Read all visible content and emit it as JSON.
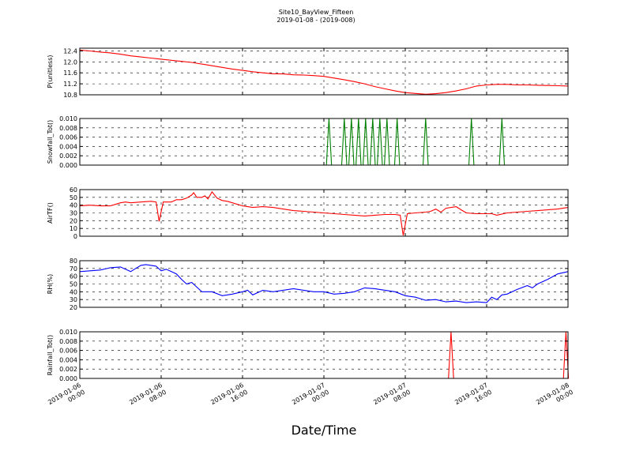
{
  "title": "Site10_BayView_Fifteen",
  "subtitle": "2019-01-08 - (2019-008)",
  "xlabel": "Date/Time",
  "chart_data": [
    {
      "type": "line",
      "ylabel": "P(unitless)",
      "ylim": [
        10.8,
        12.5
      ],
      "yticks": [
        "12.4",
        "12.0",
        "11.6",
        "11.2",
        "10.8"
      ],
      "ytick_values": [
        12.4,
        12.0,
        11.6,
        11.2,
        10.8
      ],
      "color": "#ff0000",
      "grid": true,
      "x": [
        0,
        1,
        2,
        3,
        4,
        5,
        6,
        7,
        8,
        9,
        10,
        11,
        12,
        13,
        14,
        15,
        16,
        17,
        18,
        19,
        20,
        21,
        22,
        23,
        24,
        25,
        26,
        27,
        28,
        29,
        30,
        31,
        32,
        33,
        34,
        35,
        36,
        37,
        38,
        39,
        40,
        41,
        42,
        43,
        44,
        45,
        46,
        47,
        48
      ],
      "values": [
        12.43,
        12.4,
        12.36,
        12.33,
        12.28,
        12.22,
        12.18,
        12.14,
        12.1,
        12.06,
        12.02,
        11.98,
        11.92,
        11.86,
        11.8,
        11.74,
        11.69,
        11.64,
        11.6,
        11.57,
        11.56,
        11.53,
        11.52,
        11.5,
        11.47,
        11.41,
        11.35,
        11.28,
        11.2,
        11.1,
        11.02,
        10.94,
        10.88,
        10.85,
        10.82,
        10.84,
        10.88,
        10.94,
        11.02,
        11.12,
        11.16,
        11.18,
        11.18,
        11.16,
        11.16,
        11.15,
        11.14,
        11.13,
        11.12
      ]
    },
    {
      "type": "line",
      "ylabel": "Snowfall_Tot()",
      "ylim": [
        0,
        0.01
      ],
      "yticks": [
        "0.010",
        "0.008",
        "0.006",
        "0.004",
        "0.002",
        "0.000"
      ],
      "ytick_values": [
        0.01,
        0.008,
        0.006,
        0.004,
        0.002,
        0
      ],
      "color": "#008000",
      "grid": true,
      "spike_hours": [
        24.5,
        26.0,
        26.7,
        27.4,
        28.1,
        28.8,
        29.5,
        30.2,
        31.2,
        34.0,
        38.5,
        41.5
      ],
      "spike_value": 0.01
    },
    {
      "type": "line",
      "ylabel": "AirTF()",
      "ylim": [
        0,
        60
      ],
      "yticks": [
        "60",
        "50",
        "40",
        "30",
        "20",
        "10",
        "0"
      ],
      "ytick_values": [
        60,
        50,
        40,
        30,
        20,
        10,
        0
      ],
      "color": "#ff0000",
      "grid": true,
      "x": [
        0,
        1,
        2,
        3,
        3.5,
        4,
        4.5,
        5,
        6,
        7,
        7.5,
        7.8,
        8.2,
        9,
        9.5,
        10,
        10.5,
        11,
        11.2,
        11.5,
        12,
        12.3,
        12.6,
        13,
        13.5,
        14,
        14.5,
        15,
        16,
        17,
        18,
        19,
        20,
        21,
        22,
        23,
        24,
        25,
        26,
        27,
        28,
        29,
        30,
        31,
        31.5,
        31.8,
        32.2,
        33,
        34,
        34.5,
        35,
        35.5,
        36,
        36.5,
        37,
        37.5,
        38,
        39,
        40,
        40.5,
        41,
        42,
        43,
        44,
        45,
        46,
        47,
        48
      ],
      "values": [
        39,
        40,
        39,
        39,
        41,
        43,
        44,
        43,
        44,
        45,
        44,
        19,
        44,
        44,
        47,
        47,
        49,
        53,
        56,
        50,
        50,
        52,
        48,
        57,
        49,
        46,
        45,
        43,
        39,
        37,
        38,
        37,
        35,
        33,
        32,
        31,
        30,
        29,
        28,
        27,
        26,
        27,
        28,
        28,
        27,
        1,
        29,
        30,
        31,
        32,
        35,
        31,
        36,
        37,
        38,
        34,
        30,
        29,
        29,
        29,
        27,
        30,
        31,
        32,
        33,
        34,
        35,
        37
      ]
    },
    {
      "type": "line",
      "ylabel": "RH(%)",
      "ylim": [
        20,
        80
      ],
      "yticks": [
        "80",
        "70",
        "60",
        "50",
        "40",
        "30",
        "20"
      ],
      "ytick_values": [
        80,
        70,
        60,
        50,
        40,
        30,
        20
      ],
      "color": "#0000ff",
      "grid": true,
      "x": [
        0,
        1,
        2,
        3,
        4,
        5,
        5.5,
        6,
        6.5,
        7,
        7.5,
        8,
        8.5,
        9,
        9.5,
        10,
        10.5,
        11,
        11.5,
        12,
        13,
        14,
        15,
        16,
        16.5,
        17,
        18,
        19,
        20,
        21,
        22,
        23,
        24,
        25,
        26,
        27,
        28,
        29,
        30,
        31,
        32,
        33,
        34,
        35,
        36,
        37,
        38,
        39,
        40,
        40.5,
        41,
        41.5,
        42,
        43,
        44,
        44.5,
        45,
        46,
        47,
        48
      ],
      "values": [
        66,
        67,
        68,
        71,
        72,
        66,
        70,
        74,
        75,
        74,
        73,
        67,
        69,
        66,
        63,
        56,
        50,
        52,
        46,
        40,
        40,
        35,
        37,
        40,
        42,
        36,
        42,
        40,
        42,
        44,
        42,
        40,
        40,
        37,
        38,
        40,
        45,
        44,
        42,
        40,
        35,
        33,
        29,
        30,
        27,
        28,
        26,
        27,
        26,
        33,
        30,
        36,
        37,
        43,
        48,
        45,
        50,
        56,
        63,
        66
      ]
    },
    {
      "type": "line",
      "ylabel": "Rainfall_Tot()",
      "ylim": [
        0,
        0.01
      ],
      "yticks": [
        "0.010",
        "0.008",
        "0.006",
        "0.004",
        "0.002",
        "0.000"
      ],
      "ytick_values": [
        0.01,
        0.008,
        0.006,
        0.004,
        0.002,
        0
      ],
      "color": "#ff0000",
      "grid": true,
      "spike_hours": [
        36.5,
        47.8
      ],
      "spike_value": 0.01
    }
  ],
  "x_axis": {
    "range_hours": [
      0,
      48
    ],
    "ticks": [
      {
        "hour": 0,
        "line1": "2019-01-06",
        "line2": "00:00"
      },
      {
        "hour": 8,
        "line1": "2019-01-06",
        "line2": "08:00"
      },
      {
        "hour": 16,
        "line1": "2019-01-06",
        "line2": "16:00"
      },
      {
        "hour": 24,
        "line1": "2019-01-07",
        "line2": "00:00"
      },
      {
        "hour": 32,
        "line1": "2019-01-07",
        "line2": "08:00"
      },
      {
        "hour": 40,
        "line1": "2019-01-07",
        "line2": "16:00"
      },
      {
        "hour": 48,
        "line1": "2019-01-08",
        "line2": "00:00"
      }
    ]
  }
}
